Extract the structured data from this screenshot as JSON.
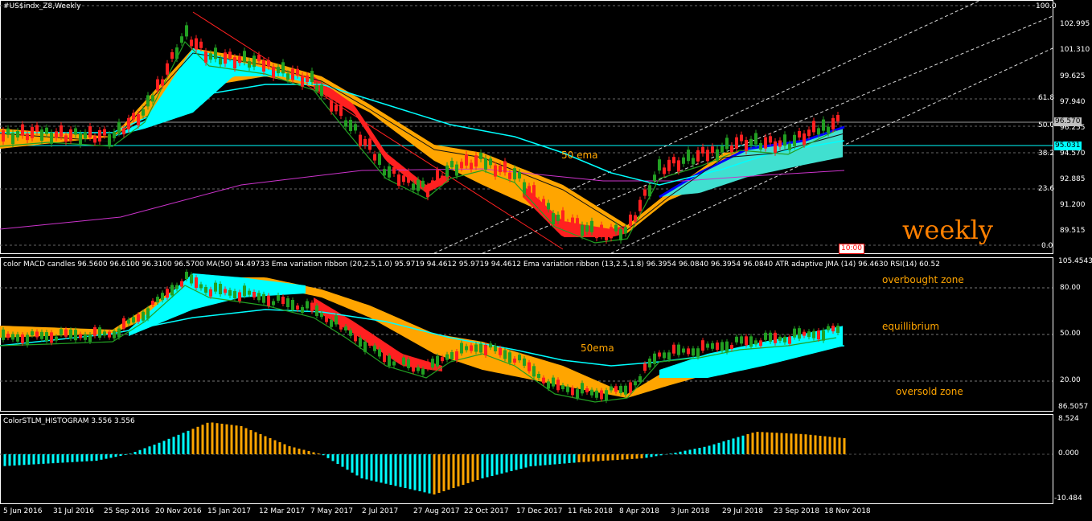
{
  "main": {
    "title": "#US$indx_Z8,Weekly",
    "annotation_ema": "50 ema",
    "annotation_tf": "weekly",
    "time_box": "10:00",
    "price_axis": [
      "102.995",
      "101.310",
      "99.625",
      "97.940",
      "96.255",
      "94.570",
      "92.885",
      "91.200",
      "89.515"
    ],
    "fib_levels": [
      "100.0",
      "61.8",
      "50.0",
      "38.2",
      "23.6",
      "0.0"
    ],
    "bid_tag": "96.570",
    "line_tag": "95.031",
    "colors": {
      "bid_tag_bg": "#c0c0c0",
      "line_tag_bg": "#00ffff"
    }
  },
  "rsi": {
    "title": "color MACD candles 96.5600 96.6100 96.3100 96.5700 MA(50) 94.49733 Ema variation ribbon (20,2.5,1.0) 95.9719 94.4612 95.9719 94.4612 Ema variation ribbon (13,2.5,1.8) 96.3954 96.0840 96.3954 96.0840 ATR adaptive JMA (14) 96.4630 RSI(14) 60.52",
    "axis": [
      "105.4543",
      "80.00",
      "50.00",
      "20.00",
      "86.5057"
    ],
    "zone_overbought": "overbought zone",
    "zone_equilibrium": "equillibrium",
    "zone_oversold": "oversold zone",
    "annotation_ema": "50ema"
  },
  "histogram": {
    "title": "ColorSTLM_HISTOGRAM 3.556 3.556",
    "axis": [
      "8.524",
      "0.000",
      "-10.484"
    ]
  },
  "time_axis": [
    "5 Jun 2016",
    "31 Jul 2016",
    "25 Sep 2016",
    "20 Nov 2016",
    "15 Jan 2017",
    "12 Mar 2017",
    "7 May 2017",
    "2 Jul 2017",
    "27 Aug 2017",
    "22 Oct 2017",
    "17 Dec 2017",
    "11 Feb 2018",
    "8 Apr 2018",
    "3 Jun 2018",
    "29 Jul 2018",
    "23 Sep 2018",
    "18 Nov 2018"
  ],
  "colors": {
    "bull": "#22a022",
    "bear": "#ff2020",
    "cyan": "#00ffff",
    "orange": "#ffa500",
    "magenta": "#cc33cc",
    "blue": "#0000ff",
    "grid": "#ffffff"
  }
}
